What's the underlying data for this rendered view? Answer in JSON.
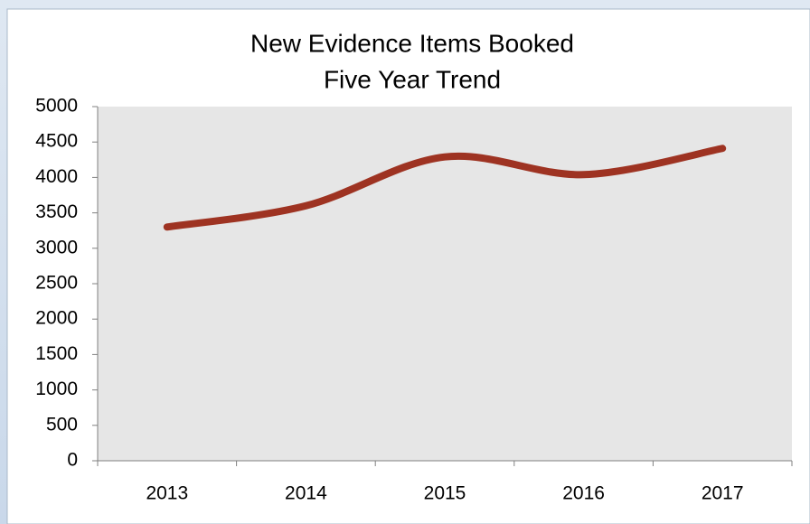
{
  "chart_data": {
    "type": "line",
    "title": "New Evidence Items Booked",
    "subtitle": "Five Year Trend",
    "categories": [
      "2013",
      "2014",
      "2015",
      "2016",
      "2017"
    ],
    "values": [
      3300,
      3600,
      4290,
      4040,
      4410
    ],
    "color": "#9e3322",
    "smooth": true,
    "ylim": [
      0,
      5000
    ],
    "yticks": [
      0,
      500,
      1000,
      1500,
      2000,
      2500,
      3000,
      3500,
      4000,
      4500,
      5000
    ],
    "grid": false
  }
}
